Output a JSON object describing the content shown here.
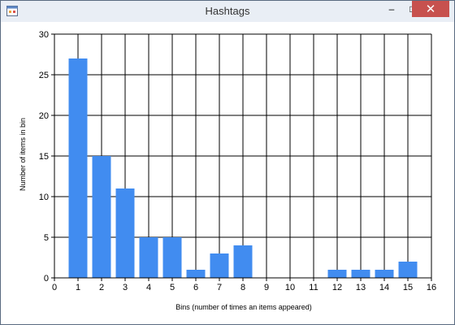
{
  "window": {
    "title": "Hashtags",
    "icon": "app-window-icon",
    "controls": {
      "minimize": "–",
      "maximize": "□",
      "close": "✕"
    },
    "close_color": "#c7514e"
  },
  "chart_data": {
    "type": "bar",
    "title": "",
    "xlabel": "Bins (number of times an items appeared)",
    "ylabel": "Number of items in bin",
    "categories": [
      1,
      2,
      3,
      4,
      5,
      6,
      7,
      8,
      9,
      10,
      11,
      12,
      13,
      14,
      15
    ],
    "values": [
      27,
      15,
      11,
      5,
      5,
      1,
      3,
      4,
      0,
      0,
      0,
      1,
      1,
      1,
      2
    ],
    "xlim": [
      0,
      16
    ],
    "ylim": [
      0,
      30
    ],
    "xticks": [
      0,
      1,
      2,
      3,
      4,
      5,
      6,
      7,
      8,
      9,
      10,
      11,
      12,
      13,
      14,
      15,
      16
    ],
    "yticks": [
      0,
      5,
      10,
      15,
      20,
      25,
      30
    ],
    "grid": true,
    "bar_color": "#418cf0"
  }
}
